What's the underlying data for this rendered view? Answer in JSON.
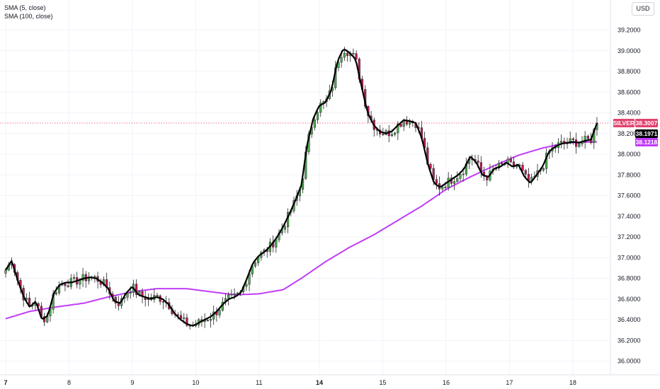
{
  "legend": {
    "sma_fast": "SMA (5, close)",
    "sma_slow": "SMA (100, close)"
  },
  "currency": "USD",
  "price_tags": {
    "symbol": "SILVER",
    "last": "38.3007",
    "sma_fast_value": "38.1971",
    "sma_slow_value": "38.1218"
  },
  "colors": {
    "up": "#26a69a",
    "up_body": "#4caf50",
    "down": "#c2185b",
    "sma_fast": "#000000",
    "sma_slow": "#c13cf7",
    "last_line": "#e0436d",
    "background": "#ffffff"
  },
  "chart_data": {
    "type": "candlestick",
    "ylim": [
      35.95,
      39.3
    ],
    "y_ticks": [
      "39.2000",
      "39.0000",
      "38.8000",
      "38.6000",
      "38.4000",
      "38.2000",
      "38.0000",
      "37.8000",
      "37.6000",
      "37.4000",
      "37.2000",
      "37.0000",
      "36.8000",
      "36.6000",
      "36.4000",
      "36.2000",
      "36.0000"
    ],
    "x_ticks": [
      {
        "label": "7",
        "bold": true,
        "x": 0.0
      },
      {
        "label": "8",
        "bold": false,
        "x": 10.5
      },
      {
        "label": "9",
        "bold": false,
        "x": 21.0
      },
      {
        "label": "10",
        "bold": false,
        "x": 31.5
      },
      {
        "label": "11",
        "bold": false,
        "x": 42.0
      },
      {
        "label": "14",
        "bold": true,
        "x": 52.0
      },
      {
        "label": "15",
        "bold": false,
        "x": 62.5
      },
      {
        "label": "16",
        "bold": false,
        "x": 73.0
      },
      {
        "label": "17",
        "bold": false,
        "x": 83.5
      },
      {
        "label": "18",
        "bold": false,
        "x": 94.0
      }
    ],
    "x_range": [
      0,
      100
    ],
    "close_anchors": [
      [
        0,
        36.88
      ],
      [
        1,
        36.97
      ],
      [
        2,
        36.78
      ],
      [
        3,
        36.62
      ],
      [
        4,
        36.52
      ],
      [
        5,
        36.58
      ],
      [
        6,
        36.4
      ],
      [
        7,
        36.44
      ],
      [
        8,
        36.66
      ],
      [
        9,
        36.74
      ],
      [
        10,
        36.76
      ],
      [
        11,
        36.76
      ],
      [
        12,
        36.78
      ],
      [
        13,
        36.8
      ],
      [
        14,
        36.81
      ],
      [
        15,
        36.8
      ],
      [
        16,
        36.76
      ],
      [
        17,
        36.7
      ],
      [
        18,
        36.58
      ],
      [
        19,
        36.56
      ],
      [
        20,
        36.66
      ],
      [
        21,
        36.72
      ],
      [
        22,
        36.64
      ],
      [
        23,
        36.62
      ],
      [
        24,
        36.6
      ],
      [
        25,
        36.62
      ],
      [
        26,
        36.6
      ],
      [
        27,
        36.55
      ],
      [
        28,
        36.46
      ],
      [
        29,
        36.4
      ],
      [
        30,
        36.36
      ],
      [
        31,
        36.34
      ],
      [
        32,
        36.37
      ],
      [
        33,
        36.4
      ],
      [
        34,
        36.43
      ],
      [
        35,
        36.48
      ],
      [
        36,
        36.55
      ],
      [
        37,
        36.6
      ],
      [
        38,
        36.62
      ],
      [
        39,
        36.66
      ],
      [
        40,
        36.8
      ],
      [
        41,
        36.95
      ],
      [
        42,
        37.02
      ],
      [
        43,
        37.06
      ],
      [
        44,
        37.12
      ],
      [
        45,
        37.2
      ],
      [
        46,
        37.3
      ],
      [
        47,
        37.42
      ],
      [
        48,
        37.55
      ],
      [
        49,
        37.7
      ],
      [
        50,
        38.1
      ],
      [
        51,
        38.35
      ],
      [
        52,
        38.47
      ],
      [
        53,
        38.5
      ],
      [
        54,
        38.62
      ],
      [
        55,
        38.9
      ],
      [
        56,
        39.02
      ],
      [
        57,
        38.98
      ],
      [
        58,
        38.92
      ],
      [
        59,
        38.65
      ],
      [
        60,
        38.4
      ],
      [
        61,
        38.28
      ],
      [
        62,
        38.22
      ],
      [
        63,
        38.2
      ],
      [
        64,
        38.22
      ],
      [
        65,
        38.28
      ],
      [
        66,
        38.33
      ],
      [
        67,
        38.32
      ],
      [
        68,
        38.3
      ],
      [
        69,
        38.15
      ],
      [
        70,
        37.9
      ],
      [
        71,
        37.72
      ],
      [
        72,
        37.68
      ],
      [
        73,
        37.72
      ],
      [
        74,
        37.76
      ],
      [
        75,
        37.8
      ],
      [
        76,
        37.86
      ],
      [
        77,
        37.98
      ],
      [
        78,
        37.92
      ],
      [
        79,
        37.8
      ],
      [
        80,
        37.78
      ],
      [
        81,
        37.86
      ],
      [
        82,
        37.88
      ],
      [
        83,
        37.92
      ],
      [
        84,
        37.88
      ],
      [
        85,
        37.9
      ],
      [
        86,
        37.78
      ],
      [
        87,
        37.72
      ],
      [
        88,
        37.8
      ],
      [
        89,
        37.88
      ],
      [
        90,
        38.02
      ],
      [
        91,
        38.07
      ],
      [
        92,
        38.1
      ],
      [
        93,
        38.11
      ],
      [
        94,
        38.12
      ],
      [
        95,
        38.11
      ],
      [
        96,
        38.13
      ],
      [
        97,
        38.14
      ],
      [
        98,
        38.3
      ]
    ],
    "sma_slow_anchors": [
      [
        0,
        36.41
      ],
      [
        4,
        36.48
      ],
      [
        8,
        36.52
      ],
      [
        13,
        36.56
      ],
      [
        17,
        36.62
      ],
      [
        21,
        36.67
      ],
      [
        25,
        36.7
      ],
      [
        30,
        36.7
      ],
      [
        34,
        36.67
      ],
      [
        38,
        36.64
      ],
      [
        42,
        36.65
      ],
      [
        46,
        36.69
      ],
      [
        49,
        36.8
      ],
      [
        53,
        36.96
      ],
      [
        57,
        37.1
      ],
      [
        61,
        37.22
      ],
      [
        65,
        37.36
      ],
      [
        69,
        37.5
      ],
      [
        73,
        37.66
      ],
      [
        77,
        37.78
      ],
      [
        81,
        37.89
      ],
      [
        85,
        37.99
      ],
      [
        89,
        38.06
      ],
      [
        93,
        38.11
      ],
      [
        98,
        38.12
      ]
    ],
    "last_price": 38.3007
  }
}
